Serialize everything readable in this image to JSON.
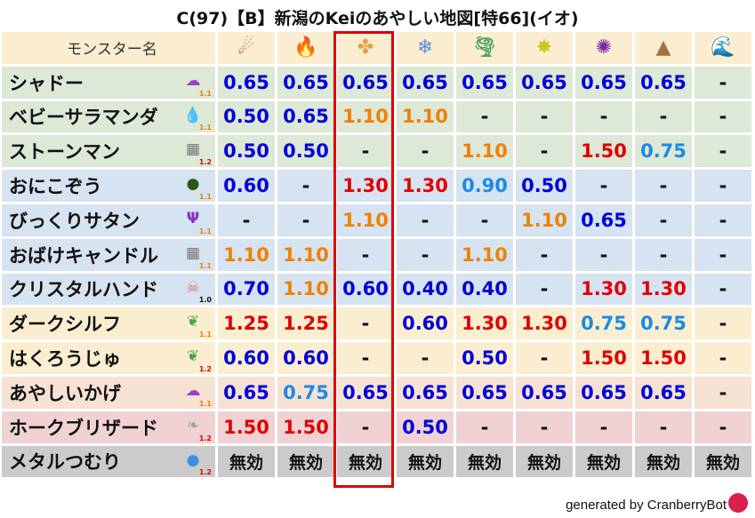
{
  "title": "C(97)【B】新潟のKeiのあやしい地図[特66](イオ)",
  "header": {
    "name_col": "モンスター名",
    "elements": [
      {
        "icon": "fire-ball-icon",
        "glyph": "☄",
        "color": "#d83a10"
      },
      {
        "icon": "flame-icon",
        "glyph": "🔥",
        "color": "#e85a10"
      },
      {
        "icon": "explosion-icon",
        "glyph": "✤",
        "color": "#e8a040"
      },
      {
        "icon": "ice-snowflake-icon",
        "glyph": "❄",
        "color": "#5a8ad8"
      },
      {
        "icon": "wind-tornado-icon",
        "glyph": "🌪",
        "color": "#4aa060"
      },
      {
        "icon": "light-star-icon",
        "glyph": "✸",
        "color": "#c8c820"
      },
      {
        "icon": "dark-vortex-icon",
        "glyph": "✺",
        "color": "#7a2aa8"
      },
      {
        "icon": "earth-mountain-icon",
        "glyph": "▲",
        "color": "#a87040"
      },
      {
        "icon": "water-wave-icon",
        "glyph": "🌊",
        "color": "#1a6ad0"
      }
    ]
  },
  "highlight_column": 2,
  "colors": {
    "strong_resist": "#0000d8",
    "mild_resist": "#1a8ae8",
    "weak": "#f08000",
    "very_weak": "#e00000",
    "immune": "#111111",
    "highlight_border": "#e00000"
  },
  "rows": [
    {
      "name": "シャドー",
      "icon": "ghost-cloud-icon",
      "glyph": "☁",
      "icon_color": "#9a40c8",
      "level": "1.1",
      "level_color": "#f08000",
      "bg": "#dde8d6",
      "values": [
        "0.65",
        "0.65",
        "0.65",
        "0.65",
        "0.65",
        "0.65",
        "0.65",
        "0.65",
        "-"
      ]
    },
    {
      "name": "ベビーサラマンダ",
      "icon": "water-drop-icon",
      "glyph": "💧",
      "icon_color": "#2a8ae0",
      "level": "1.1",
      "level_color": "#f08000",
      "bg": "#dde8d6",
      "values": [
        "0.50",
        "0.65",
        "1.10",
        "1.10",
        "-",
        "-",
        "-",
        "-",
        "-"
      ]
    },
    {
      "name": "ストーンマン",
      "icon": "stone-block-icon",
      "glyph": "▦",
      "icon_color": "#777",
      "level": "1.2",
      "level_color": "#e00000",
      "bg": "#dde8d6",
      "values": [
        "0.50",
        "0.50",
        "-",
        "-",
        "1.10",
        "-",
        "1.50",
        "0.75",
        "-"
      ]
    },
    {
      "name": "おにこぞう",
      "icon": "dark-hood-icon",
      "glyph": "●",
      "icon_color": "#2a5a10",
      "level": "1.1",
      "level_color": "#f08000",
      "bg": "#d6e3f0",
      "values": [
        "0.60",
        "-",
        "1.30",
        "1.30",
        "0.90",
        "0.50",
        "-",
        "-",
        "-"
      ]
    },
    {
      "name": "びっくりサタン",
      "icon": "trident-icon",
      "glyph": "Ψ",
      "icon_color": "#8a30c0",
      "level": "1.1",
      "level_color": "#f08000",
      "bg": "#d6e3f0",
      "values": [
        "-",
        "-",
        "1.10",
        "-",
        "-",
        "1.10",
        "0.65",
        "-",
        "-"
      ]
    },
    {
      "name": "おばけキャンドル",
      "icon": "stone-block-icon",
      "glyph": "▦",
      "icon_color": "#777",
      "level": "1.1",
      "level_color": "#f08000",
      "bg": "#d6e3f0",
      "values": [
        "1.10",
        "1.10",
        "-",
        "-",
        "1.10",
        "-",
        "-",
        "-",
        "-"
      ]
    },
    {
      "name": "クリスタルハンド",
      "icon": "skull-icon",
      "glyph": "☠",
      "icon_color": "#d87080",
      "level": "1.0",
      "level_color": "#111111",
      "bg": "#d6e3f0",
      "values": [
        "0.70",
        "1.10",
        "0.60",
        "0.40",
        "0.40",
        "-",
        "1.30",
        "1.30",
        "-"
      ]
    },
    {
      "name": "ダークシルフ",
      "icon": "leaf-icon",
      "glyph": "❦",
      "icon_color": "#4aa840",
      "level": "1.1",
      "level_color": "#f08000",
      "bg": "#fbeed0",
      "values": [
        "1.25",
        "1.25",
        "-",
        "0.60",
        "1.30",
        "1.30",
        "0.75",
        "0.75",
        "-"
      ]
    },
    {
      "name": "はくろうじゅ",
      "icon": "leaf-icon",
      "glyph": "❦",
      "icon_color": "#4aa840",
      "level": "1.2",
      "level_color": "#e00000",
      "bg": "#fbeed0",
      "values": [
        "0.60",
        "0.60",
        "-",
        "-",
        "0.50",
        "-",
        "1.50",
        "1.50",
        "-"
      ]
    },
    {
      "name": "あやしいかげ",
      "icon": "ghost-cloud-icon",
      "glyph": "☁",
      "icon_color": "#9a40c8",
      "level": "1.1",
      "level_color": "#f08000",
      "bg": "#f6e2d3",
      "values": [
        "0.65",
        "0.75",
        "0.65",
        "0.65",
        "0.65",
        "0.65",
        "0.65",
        "0.65",
        "-"
      ]
    },
    {
      "name": "ホークブリザード",
      "icon": "wing-icon",
      "glyph": "❧",
      "icon_color": "#a0a0a0",
      "level": "1.2",
      "level_color": "#e00000",
      "bg": "#f0d2d4",
      "values": [
        "1.50",
        "1.50",
        "-",
        "0.50",
        "-",
        "-",
        "-",
        "-",
        "-"
      ]
    },
    {
      "name": "メタルつむり",
      "icon": "slime-icon",
      "glyph": "●",
      "icon_color": "#3a90e0",
      "level": "1.2",
      "level_color": "#e00000",
      "bg": "#cbcbcb",
      "values": [
        "無効",
        "無効",
        "無効",
        "無効",
        "無効",
        "無効",
        "無効",
        "無効",
        "無効"
      ]
    }
  ],
  "footer": "generated by CranberryBot",
  "footer_logo": "cranberry-logo-icon"
}
